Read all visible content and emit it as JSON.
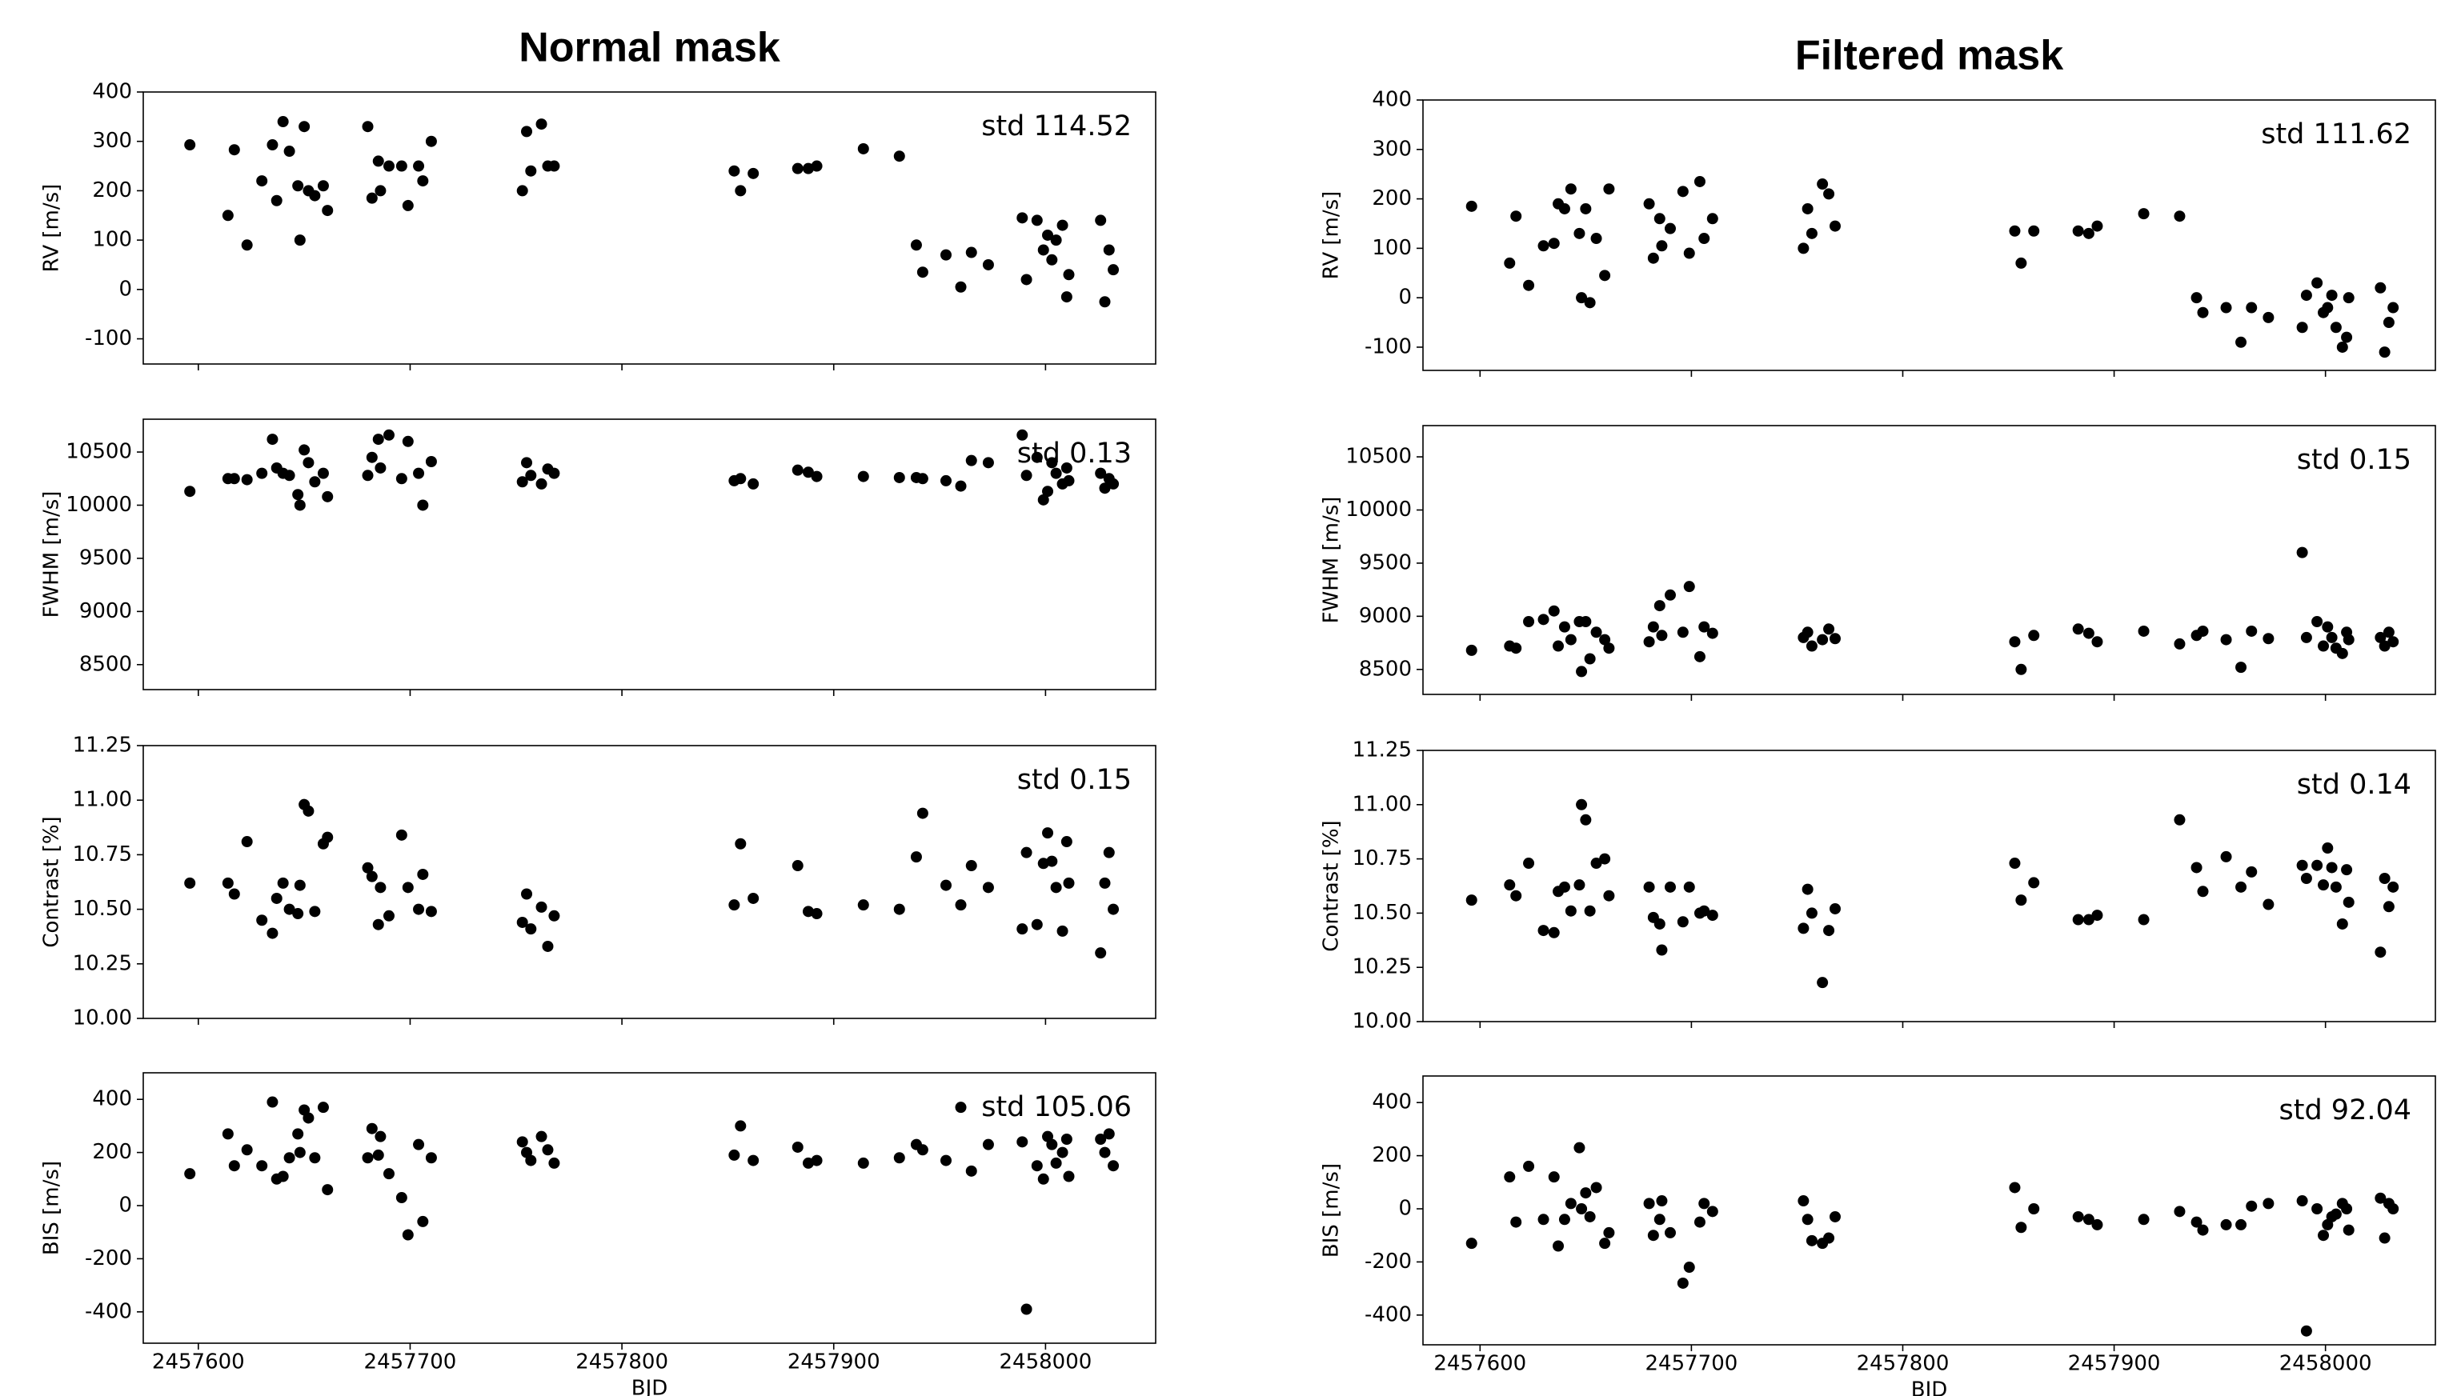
{
  "chart_data": [
    {
      "type": "scatter",
      "title": "Normal mask",
      "ylabel": "RV [m/s]",
      "annotation": "std 114.52",
      "color": "#000000",
      "x": [
        2457596,
        2457614,
        2457617,
        2457623,
        2457630,
        2457635,
        2457637,
        2457640,
        2457643,
        2457647,
        2457648,
        2457650,
        2457652,
        2457655,
        2457659,
        2457661,
        2457680,
        2457682,
        2457685,
        2457686,
        2457690,
        2457696,
        2457699,
        2457704,
        2457706,
        2457710,
        2457753,
        2457755,
        2457757,
        2457762,
        2457765,
        2457768,
        2457853,
        2457856,
        2457862,
        2457883,
        2457888,
        2457892,
        2457914,
        2457931,
        2457939,
        2457942,
        2457953,
        2457960,
        2457965,
        2457973,
        2457989,
        2457991,
        2457996,
        2457999,
        2458001,
        2458003,
        2458005,
        2458008,
        2458010,
        2458011,
        2458026,
        2458028,
        2458030,
        2458032
      ],
      "values": [
        293,
        150,
        283,
        90,
        220,
        293,
        180,
        340,
        280,
        210,
        100,
        330,
        200,
        190,
        210,
        160,
        330,
        185,
        260,
        200,
        250,
        250,
        170,
        250,
        220,
        300,
        200,
        320,
        240,
        335,
        250,
        250,
        240,
        200,
        235,
        245,
        245,
        250,
        285,
        270,
        90,
        35,
        70,
        5,
        75,
        50,
        145,
        20,
        140,
        80,
        110,
        60,
        100,
        130,
        -15,
        30,
        140,
        -25,
        80,
        40
      ],
      "xlim": [
        2457574,
        2458052
      ],
      "xticks": [
        2457600,
        2457700,
        2457800,
        2457900,
        2458000
      ],
      "ylim": [
        -151,
        400
      ],
      "yticks": [
        -100,
        0,
        100,
        200,
        300,
        400
      ]
    },
    {
      "type": "scatter",
      "ylabel": "FWHM [m/s]",
      "annotation": "std 0.13",
      "color": "#000000",
      "x": [
        2457596,
        2457614,
        2457617,
        2457623,
        2457630,
        2457635,
        2457637,
        2457640,
        2457643,
        2457647,
        2457648,
        2457650,
        2457652,
        2457655,
        2457659,
        2457661,
        2457680,
        2457682,
        2457685,
        2457686,
        2457690,
        2457696,
        2457699,
        2457704,
        2457706,
        2457710,
        2457753,
        2457755,
        2457757,
        2457762,
        2457765,
        2457768,
        2457853,
        2457856,
        2457862,
        2457883,
        2457888,
        2457892,
        2457914,
        2457931,
        2457939,
        2457942,
        2457953,
        2457960,
        2457965,
        2457973,
        2457989,
        2457991,
        2457996,
        2457999,
        2458001,
        2458003,
        2458005,
        2458008,
        2458010,
        2458011,
        2458026,
        2458028,
        2458030,
        2458032
      ],
      "values": [
        10130,
        10250,
        10250,
        10240,
        10300,
        10620,
        10350,
        10300,
        10280,
        10100,
        10000,
        10520,
        10400,
        10220,
        10300,
        10080,
        10280,
        10450,
        10620,
        10350,
        10660,
        10250,
        10600,
        10300,
        10000,
        10410,
        10220,
        10400,
        10280,
        10200,
        10340,
        10300,
        10230,
        10250,
        10200,
        10330,
        10310,
        10270,
        10270,
        10260,
        10260,
        10250,
        10230,
        10180,
        10420,
        10400,
        10660,
        10280,
        10450,
        10050,
        10130,
        10400,
        10300,
        10200,
        10350,
        10230,
        10300,
        10160,
        10250,
        10200
      ],
      "xlim": [
        2457574,
        2458052
      ],
      "xticks": [
        2457600,
        2457700,
        2457800,
        2457900,
        2458000
      ],
      "ylim": [
        8265,
        10809
      ],
      "yticks": [
        8500,
        9000,
        9500,
        10000,
        10500
      ]
    },
    {
      "type": "scatter",
      "ylabel": "Contrast [%]",
      "annotation": "std 0.15",
      "color": "#000000",
      "x": [
        2457596,
        2457614,
        2457617,
        2457623,
        2457630,
        2457635,
        2457637,
        2457640,
        2457643,
        2457647,
        2457648,
        2457650,
        2457652,
        2457655,
        2457659,
        2457661,
        2457680,
        2457682,
        2457685,
        2457686,
        2457690,
        2457696,
        2457699,
        2457704,
        2457706,
        2457710,
        2457753,
        2457755,
        2457757,
        2457762,
        2457765,
        2457768,
        2457853,
        2457856,
        2457862,
        2457883,
        2457888,
        2457892,
        2457914,
        2457931,
        2457939,
        2457942,
        2457953,
        2457960,
        2457965,
        2457973,
        2457989,
        2457991,
        2457996,
        2457999,
        2458001,
        2458003,
        2458005,
        2458008,
        2458010,
        2458011,
        2458026,
        2458028,
        2458030,
        2458032
      ],
      "values": [
        10.62,
        10.62,
        10.57,
        10.81,
        10.45,
        10.39,
        10.55,
        10.62,
        10.5,
        10.48,
        10.61,
        10.98,
        10.95,
        10.49,
        10.8,
        10.83,
        10.69,
        10.65,
        10.43,
        10.6,
        10.47,
        10.84,
        10.6,
        10.5,
        10.66,
        10.49,
        10.44,
        10.57,
        10.41,
        10.51,
        10.33,
        10.47,
        10.52,
        10.8,
        10.55,
        10.7,
        10.49,
        10.48,
        10.52,
        10.5,
        10.74,
        10.94,
        10.61,
        10.52,
        10.7,
        10.6,
        10.41,
        10.76,
        10.43,
        10.71,
        10.85,
        10.72,
        10.6,
        10.4,
        10.81,
        10.62,
        10.3,
        10.62,
        10.76,
        10.5
      ],
      "xlim": [
        2457574,
        2458052
      ],
      "xticks": [
        2457600,
        2457700,
        2457800,
        2457900,
        2458000
      ],
      "ylim": [
        10,
        11.25
      ],
      "yticks": [
        {
          "value": 10,
          "label": "10.00"
        },
        10.25,
        {
          "value": 10.5,
          "label": "10.50"
        },
        10.75,
        {
          "value": 11,
          "label": "11.00"
        },
        11.25
      ]
    },
    {
      "type": "scatter",
      "ylabel": "BIS [m/s]",
      "annotation": "std 105.06",
      "xlabel": "BJD",
      "color": "#000000",
      "x": [
        2457596,
        2457614,
        2457617,
        2457623,
        2457630,
        2457635,
        2457637,
        2457640,
        2457643,
        2457647,
        2457648,
        2457650,
        2457652,
        2457655,
        2457659,
        2457661,
        2457680,
        2457682,
        2457685,
        2457686,
        2457690,
        2457696,
        2457699,
        2457704,
        2457706,
        2457710,
        2457753,
        2457755,
        2457757,
        2457762,
        2457765,
        2457768,
        2457853,
        2457856,
        2457862,
        2457883,
        2457888,
        2457892,
        2457914,
        2457931,
        2457939,
        2457942,
        2457953,
        2457960,
        2457965,
        2457973,
        2457989,
        2457991,
        2457996,
        2457999,
        2458001,
        2458003,
        2458005,
        2458008,
        2458010,
        2458011,
        2458026,
        2458028,
        2458030,
        2458032
      ],
      "values": [
        120,
        270,
        150,
        210,
        150,
        390,
        100,
        110,
        180,
        270,
        200,
        360,
        330,
        180,
        370,
        60,
        180,
        290,
        190,
        260,
        120,
        30,
        -110,
        230,
        -60,
        180,
        240,
        200,
        170,
        260,
        210,
        160,
        190,
        300,
        170,
        220,
        160,
        170,
        160,
        180,
        230,
        210,
        170,
        370,
        130,
        230,
        240,
        -390,
        150,
        100,
        260,
        230,
        160,
        200,
        250,
        110,
        250,
        200,
        270,
        150
      ],
      "xlim": [
        2457574,
        2458052
      ],
      "xticks": [
        2457600,
        2457700,
        2457800,
        2457900,
        2458000
      ],
      "ylim": [
        -518,
        500
      ],
      "yticks": [
        -400,
        -200,
        0,
        200,
        400
      ]
    },
    {
      "type": "scatter",
      "title": "Filtered mask",
      "ylabel": "RV [m/s]",
      "annotation": "std 111.62",
      "color": "#000000",
      "x": [
        2457596,
        2457614,
        2457617,
        2457623,
        2457630,
        2457635,
        2457637,
        2457640,
        2457643,
        2457647,
        2457648,
        2457650,
        2457652,
        2457655,
        2457659,
        2457661,
        2457680,
        2457682,
        2457685,
        2457686,
        2457690,
        2457696,
        2457699,
        2457704,
        2457706,
        2457710,
        2457753,
        2457755,
        2457757,
        2457762,
        2457765,
        2457768,
        2457853,
        2457856,
        2457862,
        2457883,
        2457888,
        2457892,
        2457914,
        2457931,
        2457939,
        2457942,
        2457953,
        2457960,
        2457965,
        2457973,
        2457989,
        2457991,
        2457996,
        2457999,
        2458001,
        2458003,
        2458005,
        2458008,
        2458010,
        2458011,
        2458026,
        2458028,
        2458030,
        2458032
      ],
      "values": [
        185,
        70,
        165,
        25,
        105,
        110,
        190,
        180,
        220,
        130,
        0,
        180,
        -10,
        120,
        45,
        220,
        190,
        80,
        160,
        105,
        140,
        215,
        90,
        235,
        120,
        160,
        100,
        180,
        130,
        230,
        210,
        145,
        135,
        70,
        135,
        135,
        130,
        145,
        170,
        165,
        0,
        -30,
        -20,
        -90,
        -20,
        -40,
        -60,
        5,
        30,
        -30,
        -20,
        5,
        -60,
        -100,
        -80,
        0,
        20,
        -110,
        -50,
        -20
      ],
      "xlim": [
        2457573,
        2458052
      ],
      "xticks": [
        2457600,
        2457700,
        2457800,
        2457900,
        2458000
      ],
      "ylim": [
        -147,
        400
      ],
      "yticks": [
        -100,
        0,
        100,
        200,
        300,
        400
      ]
    },
    {
      "type": "scatter",
      "ylabel": "FWHM [m/s]",
      "annotation": "std 0.15",
      "color": "#000000",
      "x": [
        2457596,
        2457614,
        2457617,
        2457623,
        2457630,
        2457635,
        2457637,
        2457640,
        2457643,
        2457647,
        2457648,
        2457650,
        2457652,
        2457655,
        2457659,
        2457661,
        2457680,
        2457682,
        2457685,
        2457686,
        2457690,
        2457696,
        2457699,
        2457704,
        2457706,
        2457710,
        2457753,
        2457755,
        2457757,
        2457762,
        2457765,
        2457768,
        2457853,
        2457856,
        2457862,
        2457883,
        2457888,
        2457892,
        2457914,
        2457931,
        2457939,
        2457942,
        2457953,
        2457960,
        2457965,
        2457973,
        2457989,
        2457991,
        2457996,
        2457999,
        2458001,
        2458003,
        2458005,
        2458008,
        2458010,
        2458011,
        2458026,
        2458028,
        2458030,
        2458032
      ],
      "values": [
        8680,
        8720,
        8700,
        8950,
        8970,
        9050,
        8720,
        8900,
        8780,
        8950,
        8480,
        8950,
        8600,
        8850,
        8780,
        8700,
        8760,
        8900,
        9100,
        8820,
        9200,
        8850,
        9280,
        8620,
        8900,
        8840,
        8800,
        8850,
        8720,
        8780,
        8880,
        8790,
        8760,
        8500,
        8820,
        8880,
        8840,
        8760,
        8860,
        8740,
        8820,
        8860,
        8780,
        8520,
        8860,
        8790,
        9600,
        8800,
        8950,
        8720,
        8900,
        8800,
        8700,
        8650,
        8850,
        8780,
        8800,
        8720,
        8850,
        8760
      ],
      "xlim": [
        2457573,
        2458052
      ],
      "xticks": [
        2457600,
        2457700,
        2457800,
        2457900,
        2458000
      ],
      "ylim": [
        8265,
        10794
      ],
      "yticks": [
        8500,
        9000,
        9500,
        10000,
        10500
      ]
    },
    {
      "type": "scatter",
      "ylabel": "Contrast [%]",
      "annotation": "std 0.14",
      "color": "#000000",
      "x": [
        2457596,
        2457614,
        2457617,
        2457623,
        2457630,
        2457635,
        2457637,
        2457640,
        2457643,
        2457647,
        2457648,
        2457650,
        2457652,
        2457655,
        2457659,
        2457661,
        2457680,
        2457682,
        2457685,
        2457686,
        2457690,
        2457696,
        2457699,
        2457704,
        2457706,
        2457710,
        2457753,
        2457755,
        2457757,
        2457762,
        2457765,
        2457768,
        2457853,
        2457856,
        2457862,
        2457883,
        2457888,
        2457892,
        2457914,
        2457931,
        2457939,
        2457942,
        2457953,
        2457960,
        2457965,
        2457973,
        2457989,
        2457991,
        2457996,
        2457999,
        2458001,
        2458003,
        2458005,
        2458008,
        2458010,
        2458011,
        2458026,
        2458028,
        2458030,
        2458032
      ],
      "values": [
        10.56,
        10.63,
        10.58,
        10.73,
        10.42,
        10.41,
        10.6,
        10.62,
        10.51,
        10.63,
        11.0,
        10.93,
        10.51,
        10.73,
        10.75,
        10.58,
        10.62,
        10.48,
        10.45,
        10.33,
        10.62,
        10.46,
        10.62,
        10.5,
        10.51,
        10.49,
        10.43,
        10.61,
        10.5,
        10.18,
        10.42,
        10.52,
        10.73,
        10.56,
        10.64,
        10.47,
        10.47,
        10.49,
        10.47,
        10.93,
        10.71,
        10.6,
        10.76,
        10.62,
        10.69,
        10.54,
        10.72,
        10.66,
        10.72,
        10.63,
        10.8,
        10.71,
        10.62,
        10.45,
        10.7,
        10.55,
        10.32,
        10.66,
        10.53,
        10.62
      ],
      "xlim": [
        2457573,
        2458052
      ],
      "xticks": [
        2457600,
        2457700,
        2457800,
        2457900,
        2458000
      ],
      "ylim": [
        10,
        11.25
      ],
      "yticks": [
        {
          "value": 10,
          "label": "10.00"
        },
        10.25,
        {
          "value": 10.5,
          "label": "10.50"
        },
        10.75,
        {
          "value": 11,
          "label": "11.00"
        },
        11.25
      ]
    },
    {
      "type": "scatter",
      "ylabel": "BIS [m/s]",
      "annotation": "std 92.04",
      "xlabel": "BJD",
      "color": "#000000",
      "x": [
        2457596,
        2457614,
        2457617,
        2457623,
        2457630,
        2457635,
        2457637,
        2457640,
        2457643,
        2457647,
        2457648,
        2457650,
        2457652,
        2457655,
        2457659,
        2457661,
        2457680,
        2457682,
        2457685,
        2457686,
        2457690,
        2457696,
        2457699,
        2457704,
        2457706,
        2457710,
        2457753,
        2457755,
        2457757,
        2457762,
        2457765,
        2457768,
        2457853,
        2457856,
        2457862,
        2457883,
        2457888,
        2457892,
        2457914,
        2457931,
        2457939,
        2457942,
        2457953,
        2457960,
        2457965,
        2457973,
        2457989,
        2457991,
        2457996,
        2457999,
        2458001,
        2458003,
        2458005,
        2458008,
        2458010,
        2458011,
        2458026,
        2458028,
        2458030,
        2458032
      ],
      "values": [
        -130,
        120,
        -50,
        160,
        -40,
        120,
        -140,
        -40,
        20,
        230,
        0,
        60,
        -30,
        80,
        -130,
        -90,
        20,
        -100,
        -40,
        30,
        -90,
        -280,
        -220,
        -50,
        20,
        -10,
        30,
        -40,
        -120,
        -130,
        -110,
        -30,
        80,
        -70,
        0,
        -30,
        -40,
        -60,
        -40,
        -10,
        -50,
        -80,
        -60,
        -60,
        10,
        20,
        30,
        -460,
        0,
        -100,
        -60,
        -30,
        -20,
        20,
        0,
        -80,
        40,
        -110,
        20,
        0
      ],
      "xlim": [
        2457573,
        2458052
      ],
      "xticks": [
        2457600,
        2457700,
        2457800,
        2457900,
        2458000
      ],
      "ylim": [
        -512,
        500
      ],
      "yticks": [
        -400,
        -200,
        0,
        200,
        400
      ]
    }
  ]
}
